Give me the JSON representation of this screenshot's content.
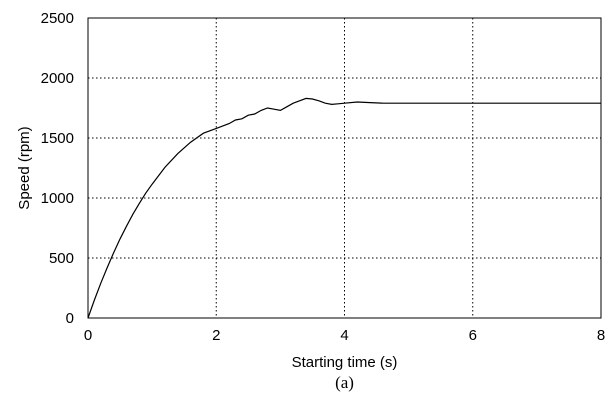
{
  "chart_data": {
    "type": "line",
    "title": "",
    "xlabel": "Starting time (s)",
    "ylabel": "Speed (rpm)",
    "caption": "(a)",
    "xlim": [
      0,
      8
    ],
    "ylim": [
      0,
      2500
    ],
    "xticks": [
      0,
      2,
      4,
      6,
      8
    ],
    "yticks": [
      0,
      500,
      1000,
      1500,
      2000,
      2500
    ],
    "grid": true,
    "legend": "none",
    "series": [
      {
        "x": [
          0,
          0.1,
          0.2,
          0.3,
          0.4,
          0.5,
          0.6,
          0.7,
          0.8,
          0.9,
          1.0,
          1.2,
          1.4,
          1.6,
          1.8,
          2.0,
          2.2,
          2.3,
          2.4,
          2.5,
          2.6,
          2.7,
          2.8,
          2.9,
          3.0,
          3.1,
          3.2,
          3.3,
          3.4,
          3.5,
          3.6,
          3.7,
          3.8,
          3.9,
          4.0,
          4.2,
          4.4,
          4.6,
          5.0,
          6.0,
          7.0,
          8.0
        ],
        "y": [
          0,
          150,
          290,
          420,
          545,
          660,
          765,
          865,
          955,
          1040,
          1115,
          1255,
          1370,
          1465,
          1540,
          1580,
          1620,
          1650,
          1660,
          1690,
          1700,
          1730,
          1750,
          1740,
          1730,
          1760,
          1790,
          1810,
          1830,
          1825,
          1810,
          1790,
          1780,
          1785,
          1790,
          1800,
          1795,
          1790,
          1790,
          1790,
          1790,
          1790
        ]
      }
    ]
  }
}
